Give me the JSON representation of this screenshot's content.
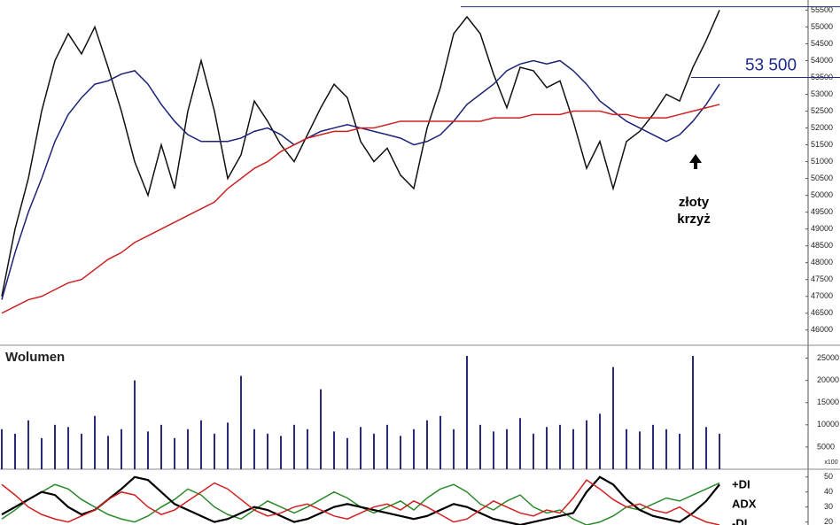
{
  "chart_data": [
    {
      "type": "line",
      "categories": [
        null,
        null,
        null,
        null,
        null,
        null,
        null,
        null,
        null,
        null,
        null,
        null,
        null,
        null,
        null,
        null,
        null,
        null,
        null,
        null,
        null,
        null,
        null,
        null,
        null,
        null,
        null,
        null,
        null,
        null,
        null,
        null,
        null,
        null,
        null,
        null,
        null,
        null,
        null,
        null,
        null,
        null,
        null,
        null,
        null,
        null,
        null,
        null,
        null,
        null,
        null,
        null,
        null,
        null,
        null
      ],
      "series": [
        {
          "color": "#111111",
          "values": [
            47000,
            49000,
            50500,
            52500,
            54000,
            54800,
            54200,
            55000,
            53800,
            52500,
            51000,
            50000,
            51500,
            50200,
            52500,
            54000,
            52500,
            50500,
            51200,
            52800,
            52200,
            51500,
            51000,
            51800,
            52600,
            53300,
            52900,
            51600,
            51000,
            51400,
            50600,
            50200,
            52000,
            53200,
            54800,
            55300,
            54800,
            53600,
            52600,
            53800,
            53700,
            53200,
            53400,
            52200,
            50800,
            51600,
            50200,
            51600,
            51900,
            52400,
            53000,
            52800,
            53800,
            54600,
            55500
          ]
        },
        {
          "color": "#1c2277",
          "values": [
            46900,
            48300,
            49500,
            50500,
            51600,
            52400,
            52900,
            53300,
            53400,
            53600,
            53700,
            53300,
            52700,
            52200,
            51800,
            51600,
            51600,
            51600,
            51700,
            51900,
            52000,
            51800,
            51500,
            51700,
            51900,
            52000,
            52100,
            52000,
            51900,
            51800,
            51700,
            51500,
            51600,
            51800,
            52200,
            52700,
            53000,
            53300,
            53700,
            53900,
            54000,
            53900,
            54000,
            53700,
            53300,
            52800,
            52500,
            52200,
            52000,
            51800,
            51600,
            51800,
            52200,
            52700,
            53300
          ]
        },
        {
          "color": "#cc2222",
          "values": [
            46500,
            46700,
            46900,
            47000,
            47200,
            47400,
            47500,
            47800,
            48100,
            48300,
            48600,
            48800,
            49000,
            49200,
            49400,
            49600,
            49800,
            50200,
            50500,
            50800,
            51000,
            51300,
            51500,
            51700,
            51800,
            51900,
            51900,
            52000,
            52000,
            52100,
            52200,
            52200,
            52200,
            52200,
            52200,
            52200,
            52200,
            52300,
            52300,
            52300,
            52400,
            52400,
            52400,
            52500,
            52500,
            52500,
            52400,
            52400,
            52300,
            52300,
            52300,
            52400,
            52500,
            52600,
            52700
          ]
        }
      ],
      "hlines": [
        55600,
        {
          "value": 53500,
          "label": "53 500"
        }
      ],
      "annotation": [
        "złoty",
        "krzyż"
      ],
      "ylim": [
        45600,
        55800
      ],
      "yticks": [
        46000,
        46500,
        47000,
        47500,
        48000,
        48500,
        49000,
        49500,
        50000,
        50500,
        51000,
        51500,
        52000,
        52500,
        53000,
        53500,
        54000,
        54500,
        55000,
        55500
      ]
    },
    {
      "type": "bar",
      "title": "Wolumen",
      "ylabel": "x100",
      "color": "#2a2a7a",
      "values": [
        9000,
        8000,
        11000,
        7000,
        10000,
        9500,
        8000,
        12000,
        7500,
        9000,
        20000,
        8500,
        10000,
        7000,
        9000,
        11000,
        8000,
        10500,
        21000,
        9000,
        8000,
        7500,
        10000,
        9000,
        18000,
        8500,
        7000,
        9500,
        8000,
        10000,
        7500,
        9000,
        11000,
        12000,
        9000,
        25500,
        10000,
        8500,
        9000,
        11500,
        8000,
        9500,
        10000,
        9000,
        11000,
        12500,
        23000,
        9000,
        8500,
        10000,
        9000,
        8000,
        25500,
        9500,
        8000
      ],
      "ylim": [
        0,
        27500
      ],
      "yticks": [
        5000,
        10000,
        15000,
        20000,
        25000
      ]
    },
    {
      "type": "line",
      "legend": "right",
      "series": [
        {
          "name": "+DI",
          "color": "#2a8a2a",
          "values": [
            22,
            28,
            35,
            40,
            45,
            42,
            35,
            30,
            25,
            22,
            20,
            24,
            30,
            35,
            42,
            38,
            30,
            25,
            22,
            28,
            34,
            30,
            26,
            30,
            35,
            40,
            36,
            30,
            26,
            30,
            34,
            28,
            36,
            42,
            45,
            40,
            32,
            28,
            34,
            38,
            30,
            26,
            28,
            22,
            18,
            20,
            24,
            30,
            28,
            32,
            36,
            34,
            38,
            42,
            46
          ]
        },
        {
          "name": "ADX",
          "color": "#000000",
          "values": [
            25,
            30,
            35,
            40,
            38,
            30,
            25,
            28,
            35,
            42,
            50,
            48,
            40,
            32,
            28,
            24,
            20,
            22,
            26,
            30,
            28,
            24,
            20,
            22,
            26,
            30,
            32,
            30,
            28,
            26,
            24,
            22,
            24,
            28,
            32,
            30,
            26,
            22,
            20,
            18,
            20,
            22,
            24,
            26,
            40,
            50,
            45,
            35,
            28,
            24,
            22,
            20,
            26,
            34,
            45
          ]
        },
        {
          "name": "-DI",
          "color": "#d02020",
          "values": [
            45,
            38,
            30,
            25,
            22,
            20,
            24,
            28,
            35,
            40,
            38,
            30,
            25,
            28,
            34,
            40,
            46,
            42,
            35,
            28,
            24,
            26,
            30,
            32,
            28,
            24,
            22,
            26,
            30,
            32,
            28,
            34,
            30,
            25,
            20,
            22,
            28,
            34,
            30,
            26,
            24,
            28,
            26,
            36,
            48,
            42,
            35,
            30,
            32,
            28,
            26,
            30,
            24,
            20,
            18
          ]
        }
      ],
      "ylim": [
        18,
        54
      ],
      "yticks": [
        50,
        40,
        30,
        20
      ]
    }
  ]
}
